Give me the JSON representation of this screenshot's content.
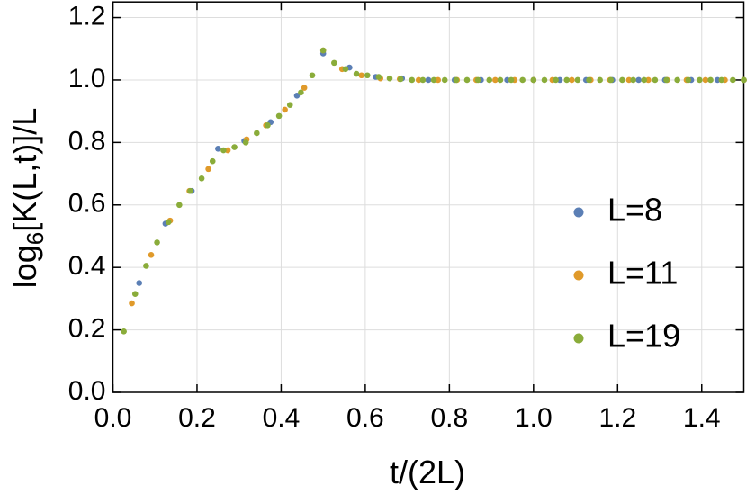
{
  "chart_data": {
    "type": "scatter",
    "xlabel": "t/(2L)",
    "ylabel": {
      "base": "log",
      "subscript": "6",
      "rest": "[K(L,t)]/L"
    },
    "xlim": [
      0,
      1.5
    ],
    "ylim": [
      0,
      1.25
    ],
    "xticks": [
      {
        "value": 0,
        "label": "0.0"
      },
      {
        "value": 0.2,
        "label": "0.2"
      },
      {
        "value": 0.4,
        "label": "0.4"
      },
      {
        "value": 0.6,
        "label": "0.6"
      },
      {
        "value": 0.8,
        "label": "0.8"
      },
      {
        "value": 1.0,
        "label": "1.0"
      },
      {
        "value": 1.2,
        "label": "1.2"
      },
      {
        "value": 1.4,
        "label": "1.4"
      }
    ],
    "yticks": [
      {
        "value": 0,
        "label": "0.0"
      },
      {
        "value": 0.2,
        "label": "0.2"
      },
      {
        "value": 0.4,
        "label": "0.4"
      },
      {
        "value": 0.6,
        "label": "0.6"
      },
      {
        "value": 0.8,
        "label": "0.8"
      },
      {
        "value": 1.0,
        "label": "1.0"
      },
      {
        "value": 1.2,
        "label": "1.2"
      }
    ],
    "grid": true,
    "legend": "center right",
    "series": [
      {
        "name": "L=8",
        "color": "#5b7fb5",
        "x": [
          0.0625,
          0.125,
          0.1875,
          0.25,
          0.3125,
          0.375,
          0.4375,
          0.5,
          0.5625,
          0.625,
          0.6875,
          0.75,
          0.8125,
          0.875,
          0.9375,
          1.0,
          1.0625,
          1.125,
          1.1875,
          1.25,
          1.3125,
          1.375,
          1.4375,
          1.5
        ],
        "values": [
          0.35,
          0.54,
          0.645,
          0.78,
          0.805,
          0.865,
          0.95,
          1.085,
          1.04,
          1.01,
          1.005,
          1.0,
          1.0,
          1.0,
          1.0,
          1.0,
          1.0,
          1.0,
          1.0,
          1.0,
          1.0,
          1.0,
          1.0,
          1.0
        ]
      },
      {
        "name": "L=11",
        "color": "#e09a2a",
        "x": [
          0.045,
          0.091,
          0.136,
          0.182,
          0.227,
          0.273,
          0.318,
          0.364,
          0.409,
          0.455,
          0.5,
          0.545,
          0.591,
          0.636,
          0.682,
          0.727,
          0.773,
          0.818,
          0.864,
          0.909,
          0.955,
          1.0,
          1.045,
          1.091,
          1.136,
          1.182,
          1.227,
          1.273,
          1.318,
          1.364,
          1.409,
          1.455,
          1.5
        ],
        "values": [
          0.285,
          0.44,
          0.55,
          0.645,
          0.715,
          0.775,
          0.81,
          0.855,
          0.905,
          0.975,
          1.095,
          1.035,
          1.015,
          1.005,
          1.003,
          1.0,
          1.0,
          1.0,
          1.0,
          1.0,
          1.0,
          1.0,
          1.0,
          1.0,
          1.0,
          1.0,
          1.0,
          1.0,
          1.0,
          1.0,
          1.0,
          1.0,
          1.0
        ]
      },
      {
        "name": "L=19",
        "color": "#8aac3a",
        "x": [
          0.026,
          0.053,
          0.079,
          0.105,
          0.132,
          0.158,
          0.184,
          0.211,
          0.237,
          0.263,
          0.289,
          0.316,
          0.342,
          0.368,
          0.395,
          0.421,
          0.447,
          0.474,
          0.5,
          0.526,
          0.553,
          0.579,
          0.605,
          0.632,
          0.658,
          0.684,
          0.711,
          0.737,
          0.763,
          0.789,
          0.816,
          0.842,
          0.868,
          0.895,
          0.921,
          0.947,
          0.974,
          1.0,
          1.026,
          1.053,
          1.079,
          1.105,
          1.132,
          1.158,
          1.184,
          1.211,
          1.237,
          1.263,
          1.289,
          1.316,
          1.342,
          1.368,
          1.395,
          1.421,
          1.447,
          1.474,
          1.5
        ],
        "values": [
          0.195,
          0.315,
          0.405,
          0.48,
          0.545,
          0.6,
          0.645,
          0.685,
          0.74,
          0.775,
          0.785,
          0.8,
          0.83,
          0.855,
          0.885,
          0.92,
          0.96,
          1.015,
          1.095,
          1.055,
          1.035,
          1.02,
          1.015,
          1.01,
          1.005,
          1.003,
          1.0,
          1.0,
          1.0,
          1.0,
          1.0,
          1.0,
          1.0,
          1.0,
          1.0,
          1.0,
          1.0,
          1.0,
          1.0,
          1.0,
          1.0,
          1.0,
          1.0,
          1.0,
          1.0,
          1.0,
          1.0,
          1.0,
          1.0,
          1.0,
          1.0,
          1.0,
          1.0,
          1.0,
          1.0,
          1.0,
          1.0
        ]
      }
    ]
  }
}
